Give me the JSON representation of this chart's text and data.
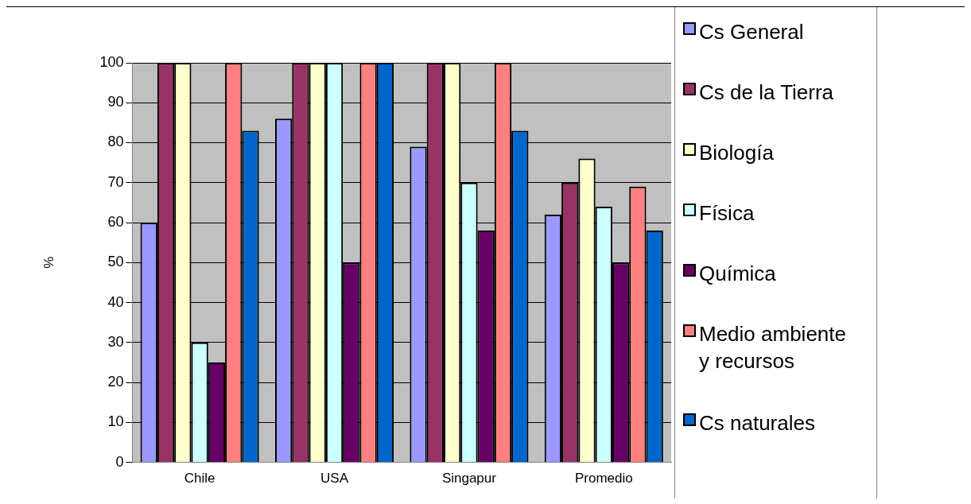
{
  "chart_data": {
    "type": "bar",
    "ylabel": "%",
    "categories": [
      "Chile",
      "USA",
      "Singapur",
      "Promedio"
    ],
    "series": [
      {
        "name": "Cs General",
        "color": "#9999ff",
        "values": [
          60,
          86,
          79,
          62
        ]
      },
      {
        "name": "Cs de la Tierra",
        "color": "#993366",
        "values": [
          100,
          100,
          100,
          70
        ]
      },
      {
        "name": "Biología",
        "color": "#ffffcc",
        "values": [
          100,
          100,
          100,
          76
        ]
      },
      {
        "name": "Física",
        "color": "#ccffff",
        "values": [
          30,
          100,
          70,
          64
        ]
      },
      {
        "name": "Química",
        "color": "#660066",
        "values": [
          25,
          50,
          58,
          50
        ]
      },
      {
        "name": "Medio ambiente y recursos",
        "color": "#ff8080",
        "values": [
          100,
          100,
          100,
          69
        ]
      },
      {
        "name": "Cs naturales",
        "color": "#0066cc",
        "values": [
          83,
          100,
          83,
          58
        ]
      }
    ],
    "ylim": [
      0,
      100
    ],
    "yticks": [
      0,
      10,
      20,
      30,
      40,
      50,
      60,
      70,
      80,
      90,
      100
    ],
    "grid": "y",
    "legend": "right"
  }
}
